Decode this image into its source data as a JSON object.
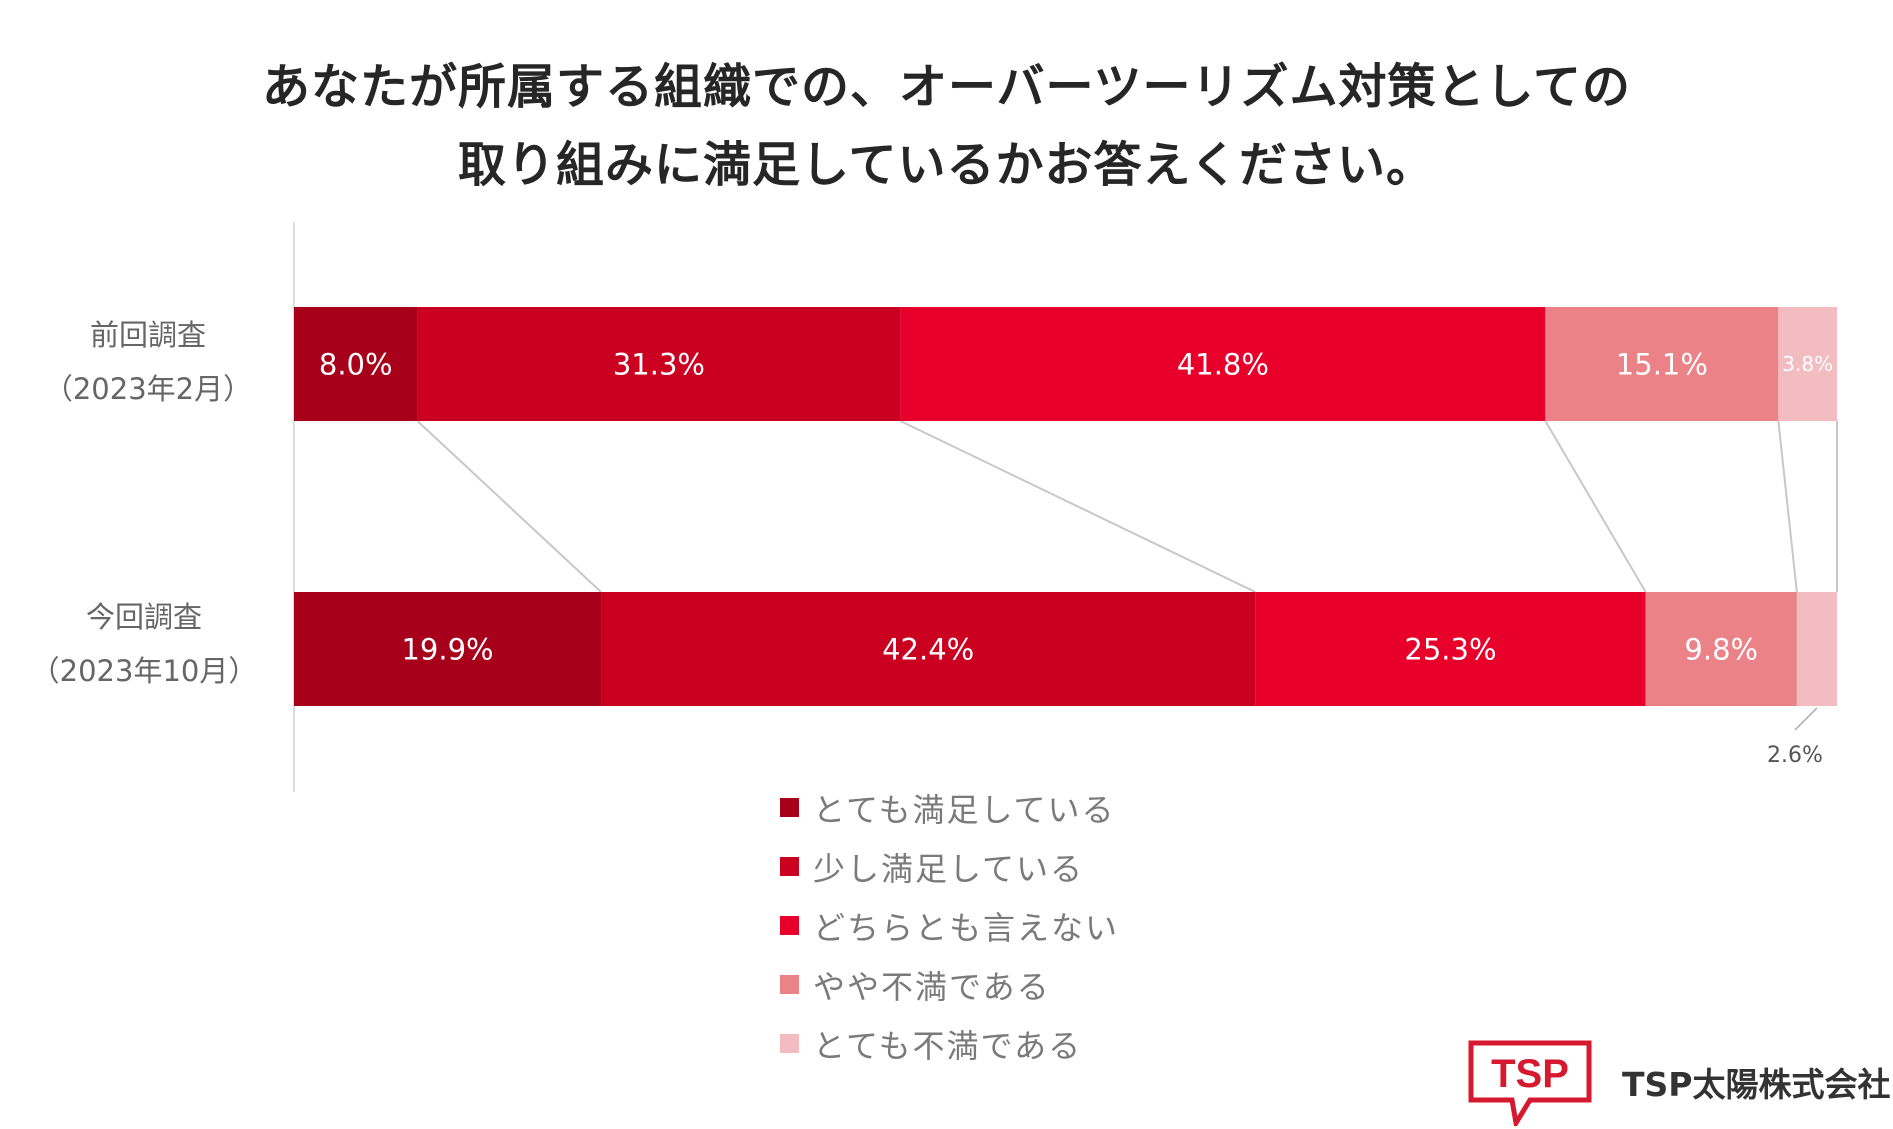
{
  "chart_data": {
    "type": "bar",
    "orientation": "horizontal",
    "stacked": "100%",
    "title": [
      "あなたが所属する組織での、オーバーツーリズム対策としての",
      "取り組みに満足しているかお答えください。"
    ],
    "categories": [
      {
        "lines": [
          "前回調査",
          "（2023年2月）"
        ]
      },
      {
        "lines": [
          "今回調査",
          "（2023年10月）"
        ]
      }
    ],
    "series": [
      {
        "name": "とても満足している",
        "color": "#a8001a",
        "values": [
          8.0,
          19.9
        ],
        "labels": [
          "8.0%",
          "19.9%"
        ]
      },
      {
        "name": "少し満足している",
        "color": "#cb0020",
        "values": [
          31.3,
          42.4
        ],
        "labels": [
          "31.3%",
          "42.4%"
        ]
      },
      {
        "name": "どちらとも言えない",
        "color": "#e8002a",
        "values": [
          41.8,
          25.3
        ],
        "labels": [
          "41.8%",
          "25.3%"
        ]
      },
      {
        "name": "やや不満である",
        "color": "#ea8288",
        "values": [
          15.1,
          9.8
        ],
        "labels": [
          "15.1%",
          "9.8%"
        ]
      },
      {
        "name": "とても不満である",
        "color": "#f2bcc1",
        "values": [
          3.8,
          2.6
        ],
        "labels": [
          "3.8%",
          "2.6%"
        ]
      }
    ],
    "xlim": [
      0,
      100
    ],
    "legend_position": "bottom-center"
  },
  "branding": {
    "logo_text": "TSP",
    "company": "TSP太陽株式会社",
    "logo_color": "#d7192f"
  }
}
